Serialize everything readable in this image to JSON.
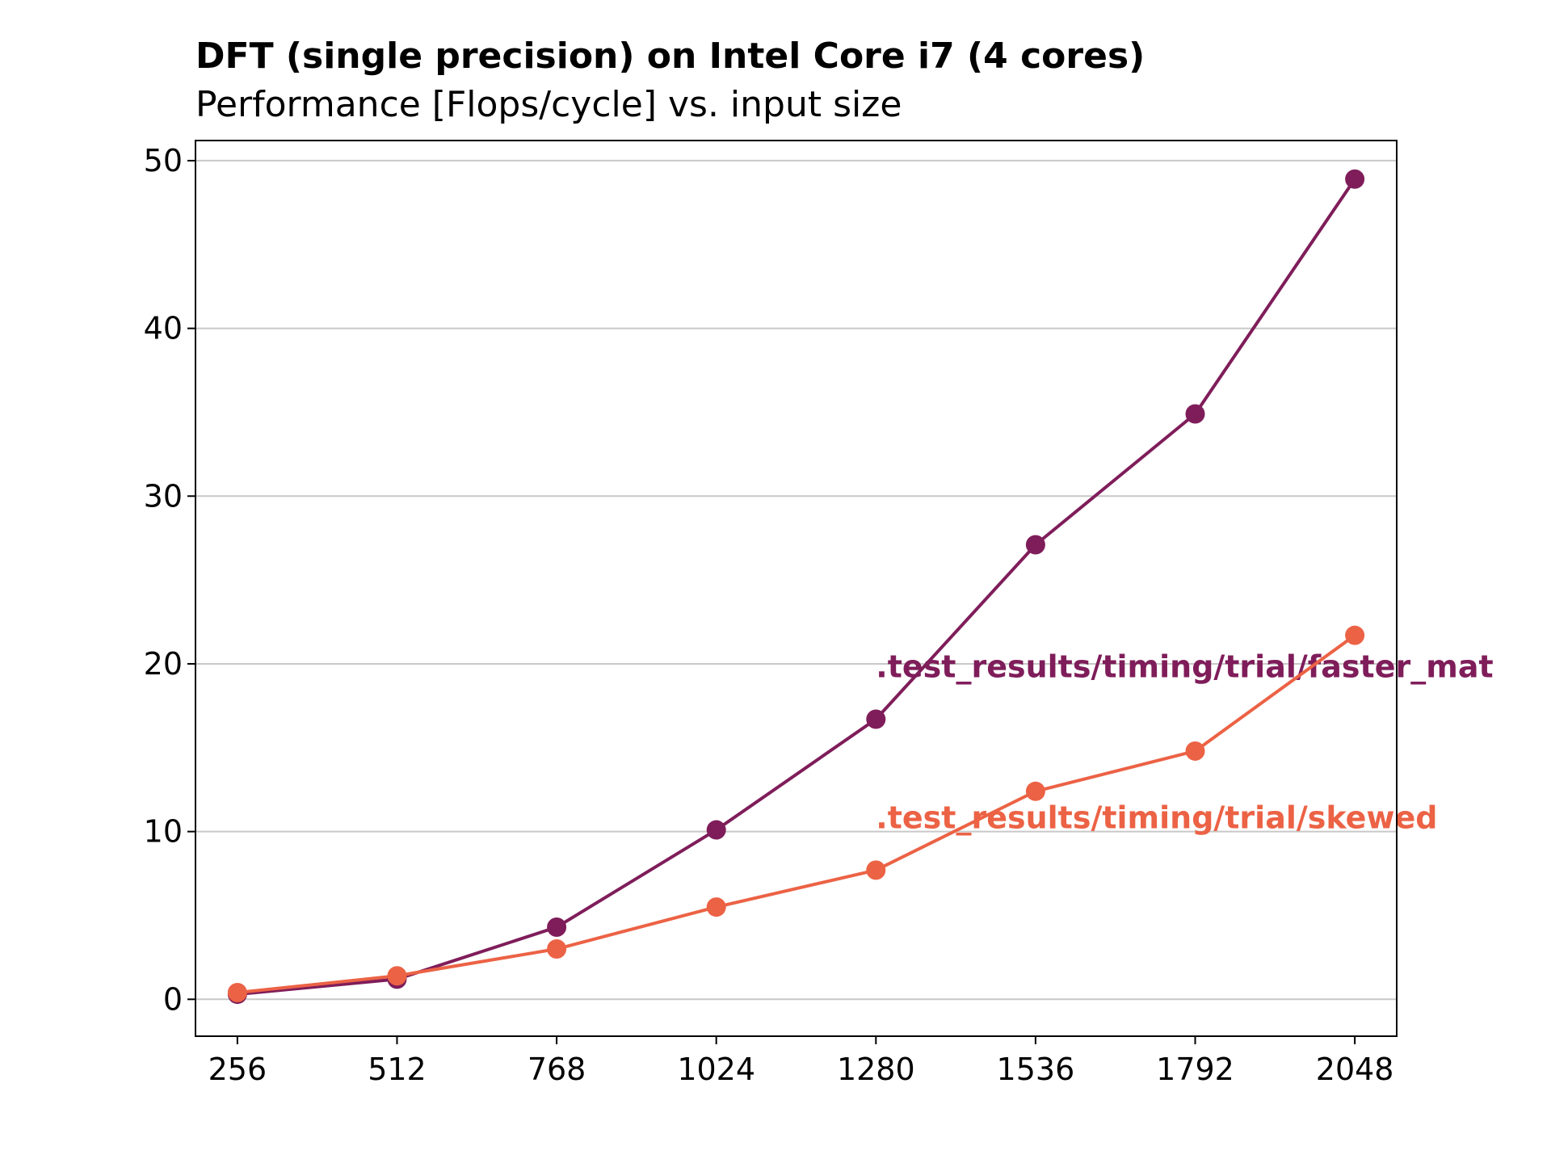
{
  "chart_data": {
    "type": "line",
    "title": "DFT (single precision) on Intel Core i7 (4 cores)",
    "subtitle": "Performance [Flops/cycle] vs. input size",
    "xlabel": "",
    "ylabel": "",
    "x": [
      256,
      512,
      768,
      1024,
      1280,
      1536,
      1792,
      2048
    ],
    "x_tick_labels": [
      "256",
      "512",
      "768",
      "1024",
      "1280",
      "1536",
      "1792",
      "2048"
    ],
    "ylim": [
      -2.2,
      51.2
    ],
    "y_ticks": [
      0,
      10,
      20,
      30,
      40,
      50
    ],
    "y_tick_labels": [
      "0",
      "10",
      "20",
      "30",
      "40",
      "50"
    ],
    "grid": "horizontal",
    "series": [
      {
        "name": ".test_results/timing/trial/faster_mat",
        "color": "#7f1d5a",
        "values": [
          0.3,
          1.2,
          4.3,
          10.1,
          16.7,
          27.1,
          34.9,
          48.9
        ],
        "label_anchor": {
          "x": 1280,
          "y": 19.2
        }
      },
      {
        "name": ".test_results/timing/trial/skewed",
        "color": "#ec6245",
        "values": [
          0.4,
          1.4,
          3.0,
          5.5,
          7.7,
          12.4,
          14.8,
          21.7
        ],
        "label_anchor": {
          "x": 1280,
          "y": 10.2
        }
      }
    ]
  }
}
